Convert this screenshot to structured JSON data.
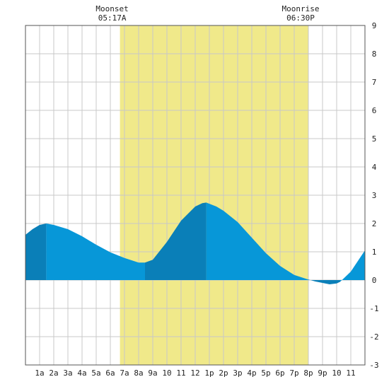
{
  "chart_data": {
    "type": "area",
    "xlim": [
      0,
      24
    ],
    "ylim": [
      -3,
      9
    ],
    "grid": true,
    "colors": {
      "daylight_band": "#f0e98a",
      "tide_light": "#0797d8",
      "tide_dark": "#0a7fb8",
      "grid": "#c8c8c8",
      "frame": "#555555"
    },
    "x_tick_labels": [
      "1a",
      "2a",
      "3a",
      "4a",
      "5a",
      "6a",
      "7a",
      "8a",
      "9a",
      "10",
      "11",
      "12",
      "1p",
      "2p",
      "3p",
      "4p",
      "5p",
      "6p",
      "7p",
      "8p",
      "9p",
      "10",
      "11"
    ],
    "y_ticks": [
      -3,
      -2,
      -1,
      0,
      1,
      2,
      3,
      4,
      5,
      6,
      7,
      8,
      9
    ],
    "highlight": {
      "start_hour": 6.68,
      "end_hour": 20.0
    },
    "annotations": [
      {
        "name": "Moonset",
        "time": "05:17A",
        "hour": 6.68
      },
      {
        "name": "Moonrise",
        "time": "06:30P",
        "hour": 20.0
      }
    ],
    "shade_breaks": [
      0,
      1.47,
      8.45,
      12.78,
      20.0,
      22.25,
      24
    ],
    "series": [
      {
        "x": [
          0,
          0.5,
          1.0,
          1.47,
          2.0,
          3.0,
          4.0,
          5.0,
          6.0,
          7.0,
          8.0,
          8.45,
          9.0,
          10.0,
          11.0,
          12.0,
          12.5,
          12.78,
          13.5,
          14.0,
          15.0,
          16.0,
          17.0,
          18.0,
          19.0,
          20.0,
          20.5,
          21.0,
          21.5,
          22.0,
          22.25,
          23.0,
          24.0
        ],
        "y": [
          1.6,
          1.8,
          1.95,
          2.0,
          1.95,
          1.8,
          1.55,
          1.25,
          0.98,
          0.78,
          0.62,
          0.62,
          0.72,
          1.35,
          2.1,
          2.6,
          2.72,
          2.74,
          2.6,
          2.45,
          2.05,
          1.5,
          0.95,
          0.5,
          0.18,
          0.02,
          -0.05,
          -0.1,
          -0.15,
          -0.12,
          -0.06,
          0.3,
          1.05
        ]
      }
    ]
  }
}
